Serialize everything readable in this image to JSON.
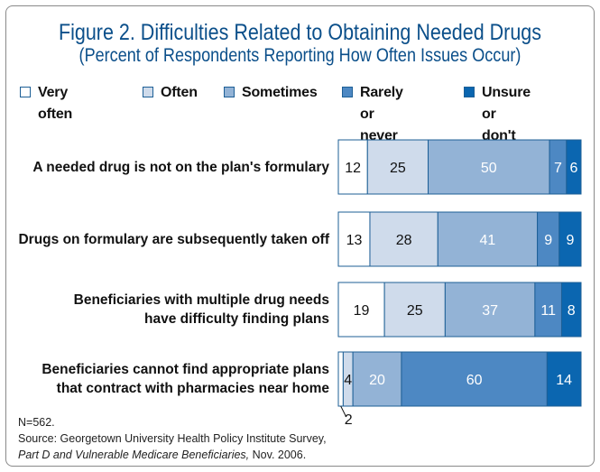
{
  "chart_data": {
    "type": "bar",
    "orientation": "horizontal",
    "stacked": true,
    "title": "Figure 2. Difficulties Related to Obtaining Needed Drugs",
    "subtitle": "(Percent of Respondents Reporting How Often Issues Occur)",
    "categories": [
      "A needed drug is not on the plan's formulary",
      "Drugs on formulary are subsequently taken off",
      "Beneficiaries with multiple drug needs\nhave difficulty finding plans",
      "Beneficiaries cannot find appropriate plans\nthat contract with pharmacies near home"
    ],
    "series": [
      {
        "name": "Very often",
        "color": "#ffffff",
        "values": [
          12,
          13,
          19,
          2
        ]
      },
      {
        "name": "Often",
        "color": "#cfdbeb",
        "values": [
          25,
          28,
          25,
          4
        ]
      },
      {
        "name": "Sometimes",
        "color": "#93b3d6",
        "values": [
          50,
          41,
          37,
          20
        ]
      },
      {
        "name": "Rarely or never",
        "color": "#4d88c3",
        "values": [
          7,
          9,
          11,
          60
        ]
      },
      {
        "name": "Unsure or\ndon't know",
        "color": "#0b66b0",
        "values": [
          6,
          9,
          8,
          14
        ]
      }
    ],
    "xlim": [
      0,
      100
    ],
    "legend_position": "top"
  },
  "notes": {
    "n": "N=562.",
    "source": "Source: Georgetown University Health Policy Institute Survey,",
    "citation": "Part D and Vulnerable Medicare Beneficiaries,",
    "date": " Nov. 2006."
  }
}
